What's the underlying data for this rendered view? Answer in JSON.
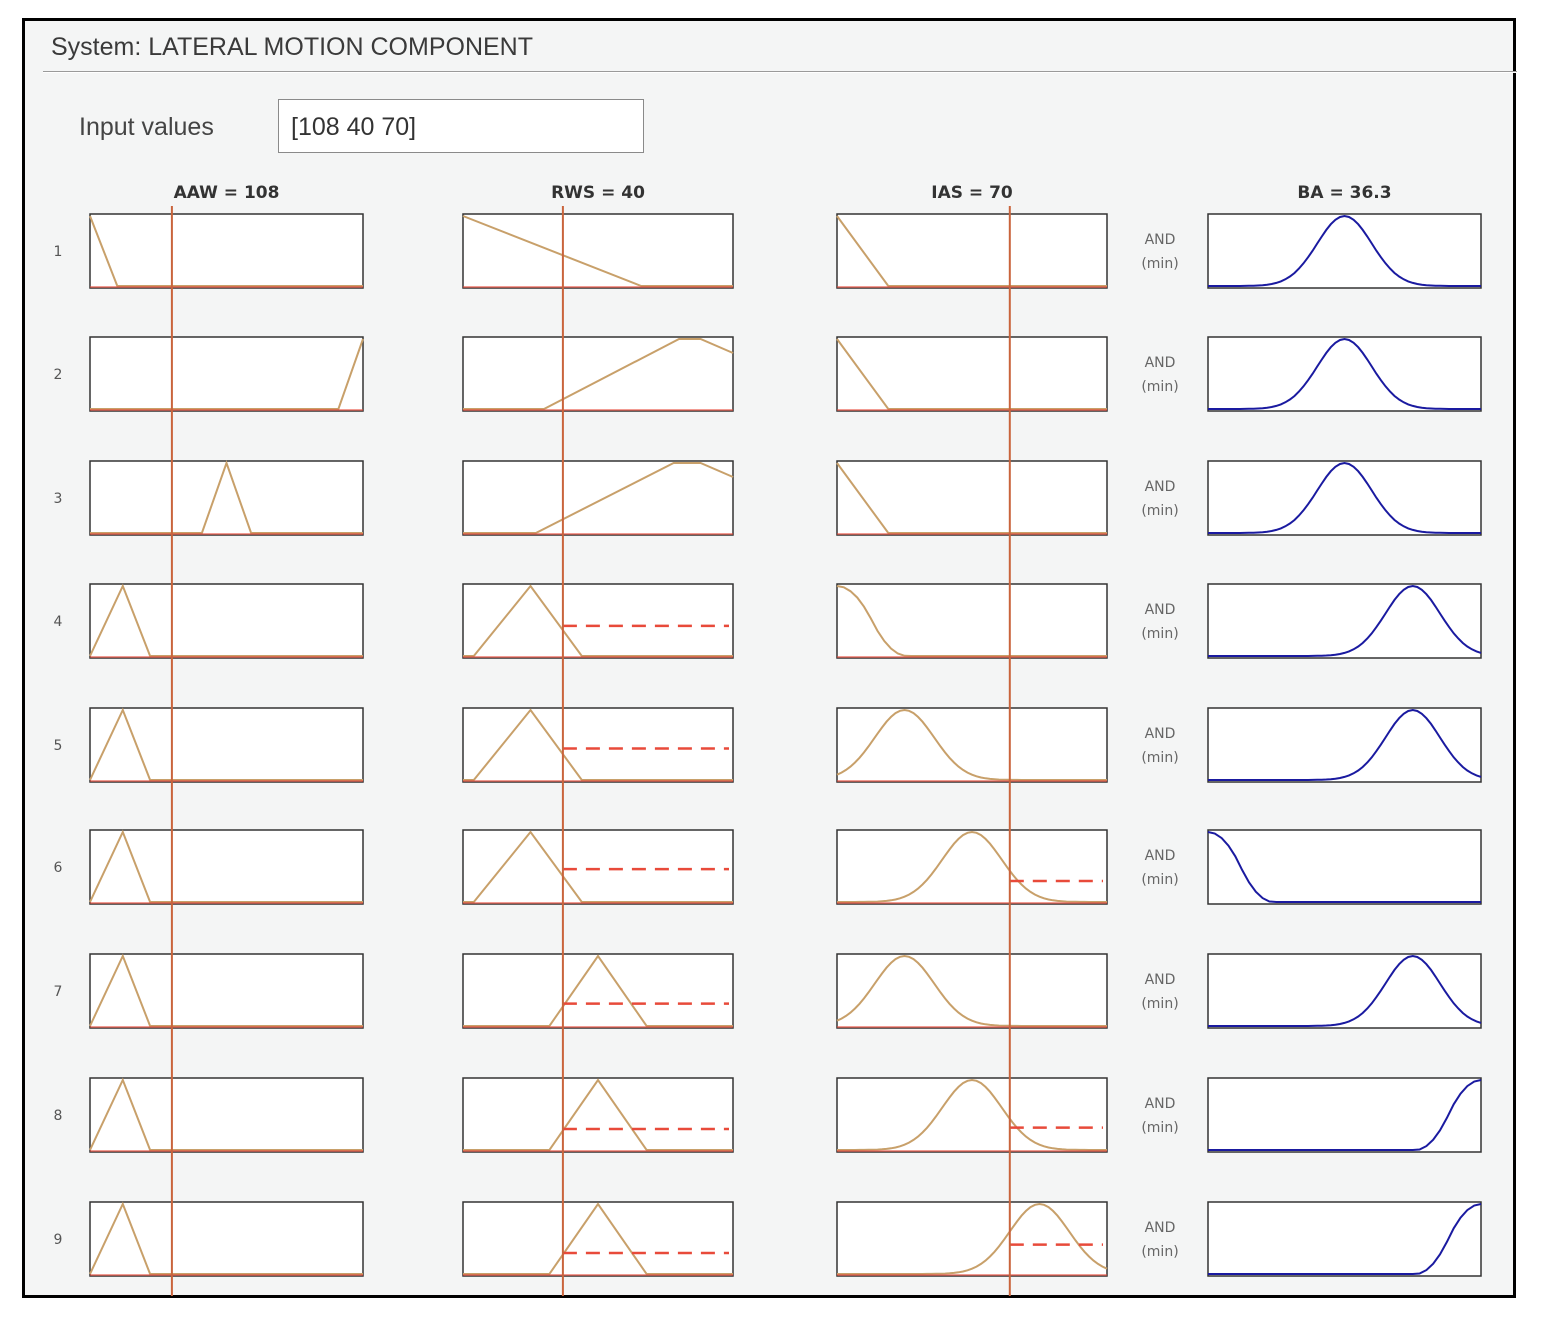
{
  "system": {
    "title": "System: LATERAL MOTION COMPONENT"
  },
  "input": {
    "label": "Input values",
    "value": "[108 40 70]"
  },
  "columns": [
    {
      "header": "AAW = 108",
      "input_position": 0.3
    },
    {
      "header": "RWS = 40",
      "input_position": 0.37
    },
    {
      "header": "IAS = 70",
      "input_position": 0.64
    },
    {
      "header": "BA = 36.3"
    }
  ],
  "connector": {
    "and": "AND",
    "min": "(min)"
  },
  "rules": [
    {
      "number": "1",
      "firing_strength": 0.0
    },
    {
      "number": "2",
      "firing_strength": 0.0
    },
    {
      "number": "3",
      "firing_strength": 0.0
    },
    {
      "number": "4",
      "firing_strength": 0.0
    },
    {
      "number": "5",
      "firing_strength": 0.0
    },
    {
      "number": "6",
      "firing_strength": 0.0
    },
    {
      "number": "7",
      "firing_strength": 0.0
    },
    {
      "number": "8",
      "firing_strength": 0.0
    },
    {
      "number": "9",
      "firing_strength": 0.0
    }
  ],
  "colors": {
    "input_mf": "#c8a06a",
    "output_mf": "#1a1aa0",
    "input_line": "#c9643c",
    "activation": "#e84a3a",
    "frame": "#000000"
  }
}
